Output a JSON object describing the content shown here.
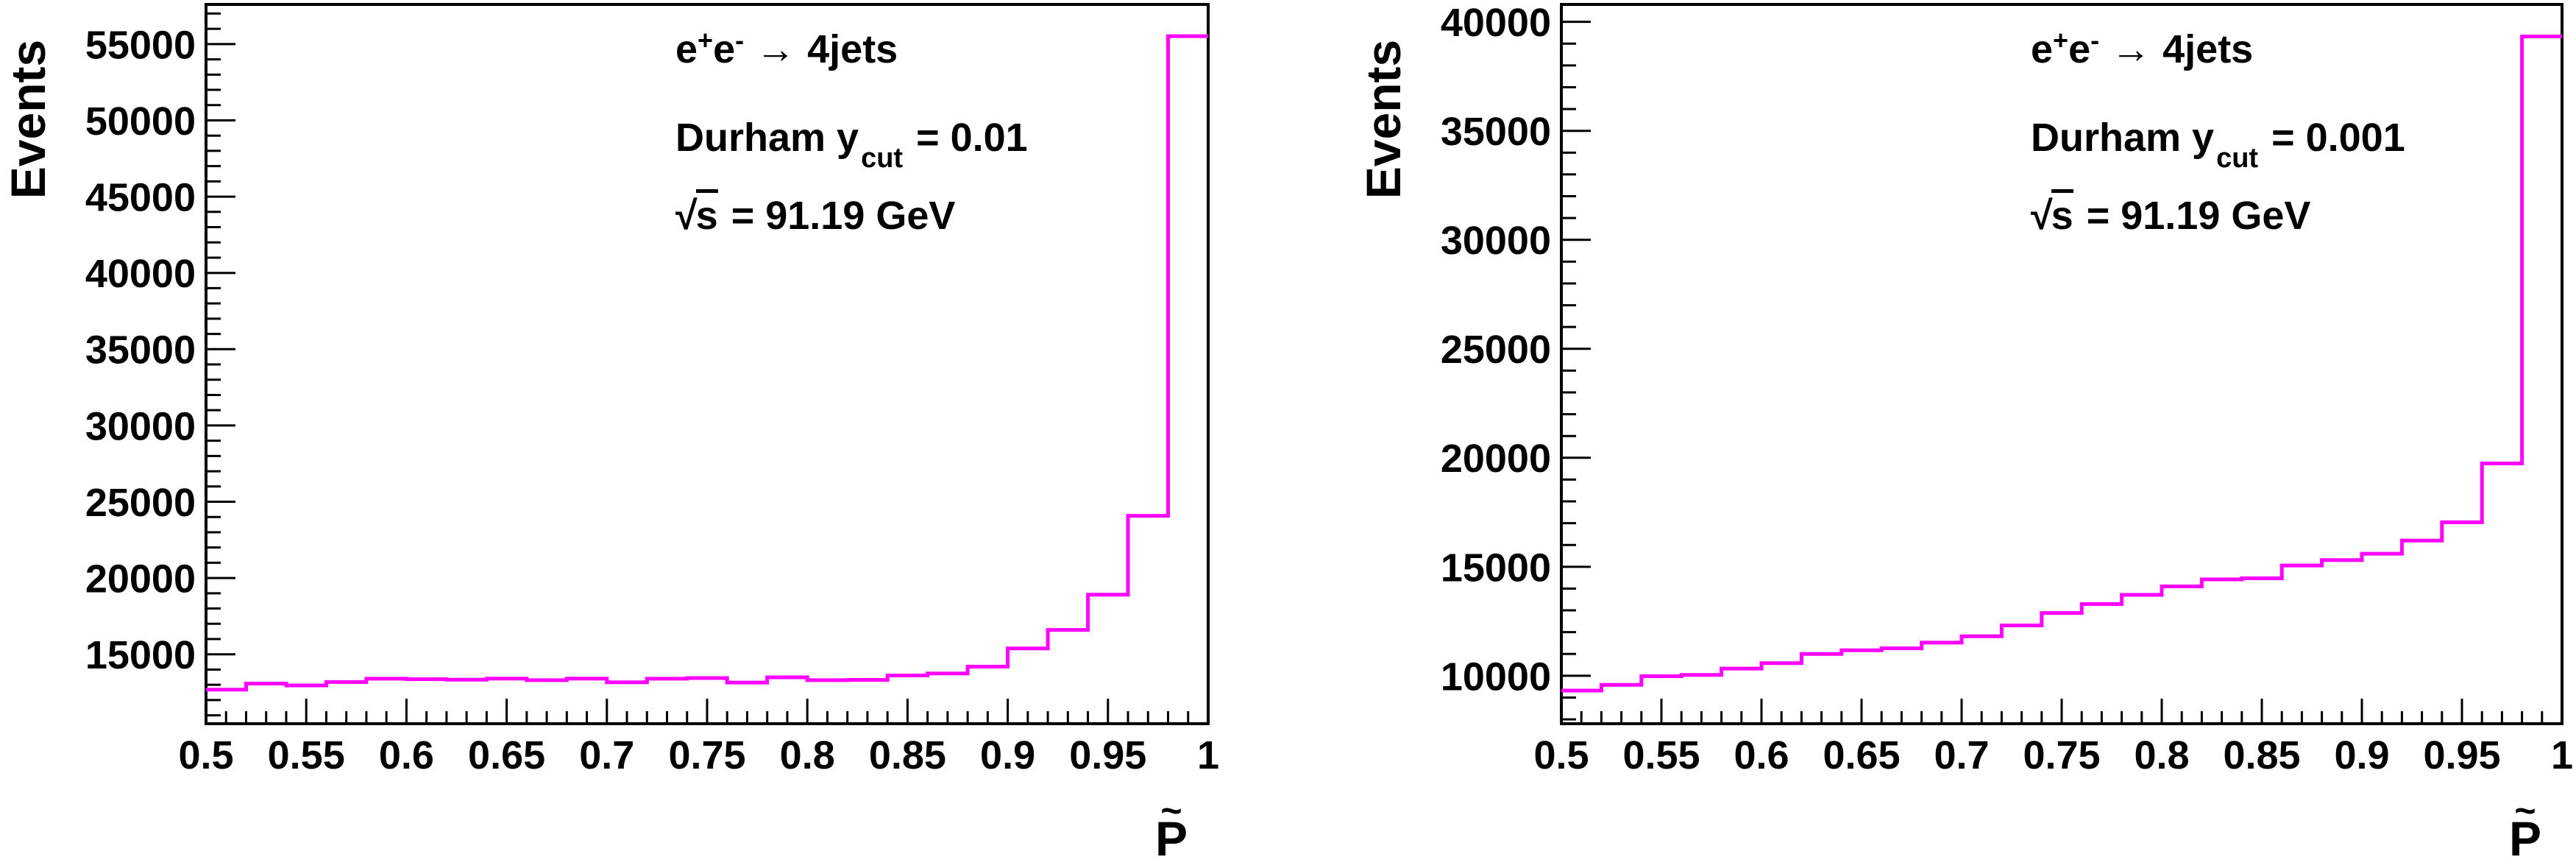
{
  "page": {
    "background": "#FFFFFF",
    "axis_color": "#000000"
  },
  "chart_data": [
    {
      "type": "bar",
      "subtype": "step-histogram",
      "ylabel": "Events",
      "xlabel": "P",
      "xlabel_accent": "~",
      "color": "#FF00FF",
      "xlim": [
        0.5,
        1.0
      ],
      "ylim": [
        10450,
        57600
      ],
      "bins": {
        "start": 0.5,
        "end": 1.0,
        "count": 25,
        "width": 0.02
      },
      "values": [
        12680,
        13080,
        12960,
        13180,
        13400,
        13370,
        13330,
        13410,
        13300,
        13410,
        13160,
        13400,
        13440,
        13150,
        13490,
        13300,
        13320,
        13610,
        13740,
        14190,
        15380,
        16600,
        18910,
        24080,
        55520
      ],
      "xticks": {
        "major_step": 0.05,
        "minor_step": 0.01,
        "labels": [
          "0.5",
          "0.55",
          "0.6",
          "0.65",
          "0.7",
          "0.75",
          "0.8",
          "0.85",
          "0.9",
          "0.95",
          "1"
        ]
      },
      "yticks": {
        "major_step": 5000,
        "minor_step": 1000,
        "values": [
          15000,
          20000,
          25000,
          30000,
          35000,
          40000,
          45000,
          50000,
          55000
        ],
        "labels": [
          "15000",
          "20000",
          "25000",
          "30000",
          "35000",
          "40000",
          "45000",
          "50000",
          "55000"
        ]
      },
      "annotations": {
        "line1": {
          "e1": "e",
          "sup1": "+",
          "e2": "e",
          "sup2": "-",
          "arrow": "→",
          "rest": "4jets"
        },
        "line2": {
          "text": "Durham y",
          "sub": "cut",
          "rest": "= 0.01"
        },
        "line3": {
          "radical": "√",
          "arg": "s",
          "rest": "= 91.19 GeV"
        }
      }
    },
    {
      "type": "bar",
      "subtype": "step-histogram",
      "ylabel": "Events",
      "xlabel": "P",
      "xlabel_accent": "~",
      "color": "#FF00FF",
      "xlim": [
        0.5,
        1.0
      ],
      "ylim": [
        7800,
        40800
      ],
      "bins": {
        "start": 0.5,
        "end": 1.0,
        "count": 25,
        "width": 0.02
      },
      "values": [
        9320,
        9580,
        9980,
        10040,
        10330,
        10580,
        11000,
        11170,
        11260,
        11520,
        11810,
        12310,
        12880,
        13290,
        13710,
        14100,
        14420,
        14470,
        15060,
        15310,
        15600,
        16200,
        17040,
        19740,
        39330
      ],
      "xticks": {
        "major_step": 0.05,
        "minor_step": 0.01,
        "labels": [
          "0.5",
          "0.55",
          "0.6",
          "0.65",
          "0.7",
          "0.75",
          "0.8",
          "0.85",
          "0.9",
          "0.95",
          "1"
        ]
      },
      "yticks": {
        "major_step": 5000,
        "minor_step": 1000,
        "values": [
          10000,
          15000,
          20000,
          25000,
          30000,
          35000,
          40000
        ],
        "labels": [
          "10000",
          "15000",
          "20000",
          "25000",
          "30000",
          "35000",
          "40000"
        ]
      },
      "annotations": {
        "line1": {
          "e1": "e",
          "sup1": "+",
          "e2": "e",
          "sup2": "-",
          "arrow": "→",
          "rest": "4jets"
        },
        "line2": {
          "text": "Durham y",
          "sub": "cut",
          "rest": "= 0.001"
        },
        "line3": {
          "radical": "√",
          "arg": "s",
          "rest": "= 91.19 GeV"
        }
      }
    }
  ]
}
